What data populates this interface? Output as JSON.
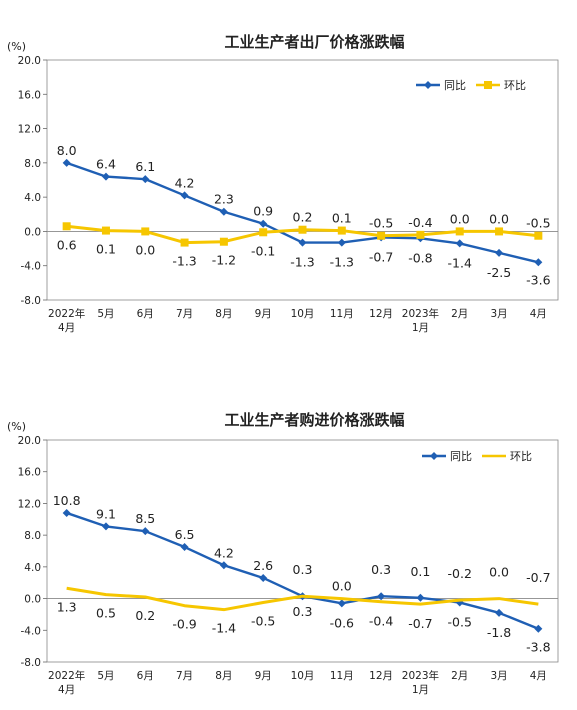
{
  "chart_data": [
    {
      "type": "line",
      "title": "工业生产者出厂价格涨跌幅",
      "unit": "(%)",
      "categories": [
        "2022年\n4月",
        "5月",
        "6月",
        "7月",
        "8月",
        "9月",
        "10月",
        "11月",
        "12月",
        "2023年\n1月",
        "2月",
        "3月",
        "4月"
      ],
      "ylim": [
        -8.0,
        20.0
      ],
      "yticks": [
        "20.0",
        "16.0",
        "12.0",
        "8.0",
        "4.0",
        "0.0",
        "-4.0",
        "-8.0"
      ],
      "legend_position": "top-right",
      "series": [
        {
          "name": "同比",
          "color": "#1f5fb4",
          "marker": "diamond",
          "values": [
            8.0,
            6.4,
            6.1,
            4.2,
            2.3,
            0.9,
            -1.3,
            -1.3,
            -0.7,
            -0.8,
            -1.4,
            -2.5,
            -3.6
          ],
          "labels": [
            "8.0",
            "6.4",
            "6.1",
            "4.2",
            "2.3",
            "0.9",
            "-1.3",
            "-1.3",
            "-0.7",
            "-0.8",
            "-1.4",
            "-2.5",
            "-3.6"
          ]
        },
        {
          "name": "环比",
          "color": "#f6c600",
          "marker": "square",
          "values": [
            0.6,
            0.1,
            0.0,
            -1.3,
            -1.2,
            -0.1,
            0.2,
            0.1,
            -0.5,
            -0.4,
            0.0,
            0.0,
            -0.5
          ],
          "labels": [
            "0.6",
            "0.1",
            "0.0",
            "-1.3",
            "-1.2",
            "-0.1",
            "0.2",
            "0.1",
            "-0.5",
            "-0.4",
            "0.0",
            "0.0",
            "-0.5"
          ]
        }
      ]
    },
    {
      "type": "line",
      "title": "工业生产者购进价格涨跌幅",
      "unit": "(%)",
      "categories": [
        "2022年\n4月",
        "5月",
        "6月",
        "7月",
        "8月",
        "9月",
        "10月",
        "11月",
        "12月",
        "2023年\n1月",
        "2月",
        "3月",
        "4月"
      ],
      "ylim": [
        -8.0,
        20.0
      ],
      "yticks": [
        "20.0",
        "16.0",
        "12.0",
        "8.0",
        "4.0",
        "0.0",
        "-4.0",
        "-8.0"
      ],
      "legend_position": "top-right",
      "series": [
        {
          "name": "同比",
          "color": "#1f5fb4",
          "marker": "diamond",
          "values": [
            10.8,
            9.1,
            8.5,
            6.5,
            4.2,
            2.6,
            0.3,
            -0.6,
            0.3,
            0.1,
            -0.5,
            -1.8,
            -3.8
          ],
          "labels": [
            "10.8",
            "9.1",
            "8.5",
            "6.5",
            "4.2",
            "2.6",
            "0.3",
            "-0.6",
            "0.3",
            "0.1",
            "-0.5",
            "-1.8",
            "-3.8"
          ]
        },
        {
          "name": "环比",
          "color": "#f6c600",
          "marker": "none",
          "values": [
            1.3,
            0.5,
            0.2,
            -0.9,
            -1.4,
            -0.5,
            0.3,
            0.0,
            -0.4,
            -0.7,
            -0.2,
            0.0,
            -0.7
          ],
          "labels": [
            "1.3",
            "0.5",
            "0.2",
            "-0.9",
            "-1.4",
            "-0.5",
            "0.3",
            "0.0",
            "-0.4",
            "-0.7",
            "-0.2",
            "0.0",
            "-0.7"
          ]
        }
      ]
    }
  ]
}
